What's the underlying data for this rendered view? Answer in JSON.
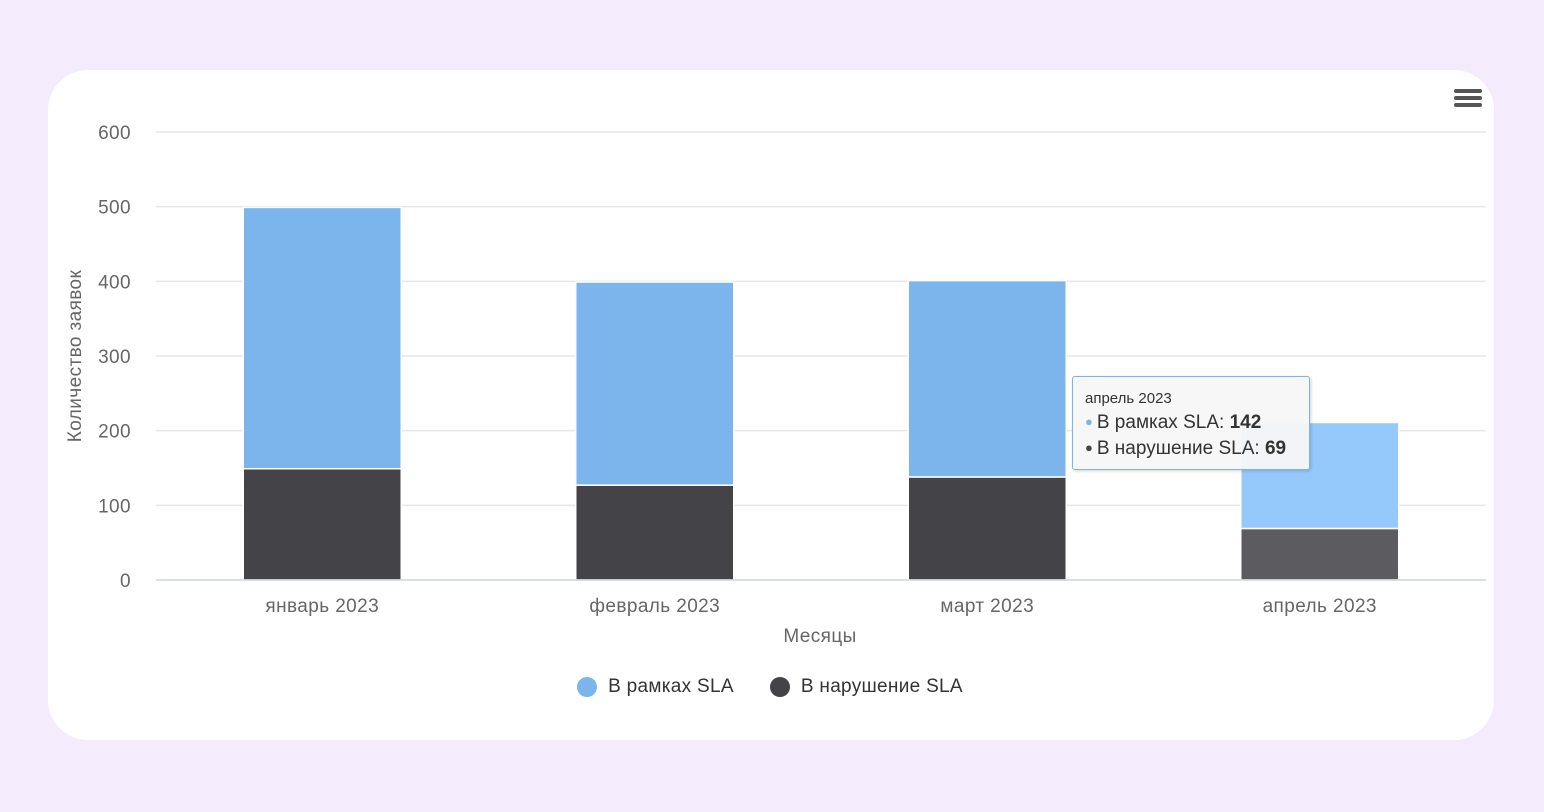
{
  "chart_data": {
    "type": "bar",
    "stacked": true,
    "categories": [
      "январь 2023",
      "февраль 2023",
      "март 2023",
      "апрель 2023"
    ],
    "series": [
      {
        "name": "В нарушение SLA",
        "color": "#434348",
        "values": [
          149,
          127,
          138,
          69
        ]
      },
      {
        "name": "В рамках SLA",
        "color": "#7cb5ec",
        "values": [
          350,
          272,
          263,
          142
        ]
      }
    ],
    "title": "",
    "xlabel": "Месяцы",
    "ylabel": "Количество заявок",
    "ylim": [
      0,
      600
    ],
    "yticks": [
      0,
      100,
      200,
      300,
      400,
      500,
      600
    ],
    "grid": true,
    "legend_position": "bottom-center",
    "highlighted_category": "апрель 2023"
  },
  "tooltip": {
    "header": "апрель 2023",
    "rows": [
      {
        "label": "В рамках SLA",
        "value": "142",
        "color": "#7cb5ec"
      },
      {
        "label": "В нарушение SLA",
        "value": "69",
        "color": "#434348"
      }
    ]
  },
  "legend": [
    {
      "label": "В рамках SLA",
      "color": "#7cb5ec"
    },
    {
      "label": "В нарушение SLA",
      "color": "#434348"
    }
  ],
  "menu": {
    "icon": "hamburger-menu-icon"
  }
}
